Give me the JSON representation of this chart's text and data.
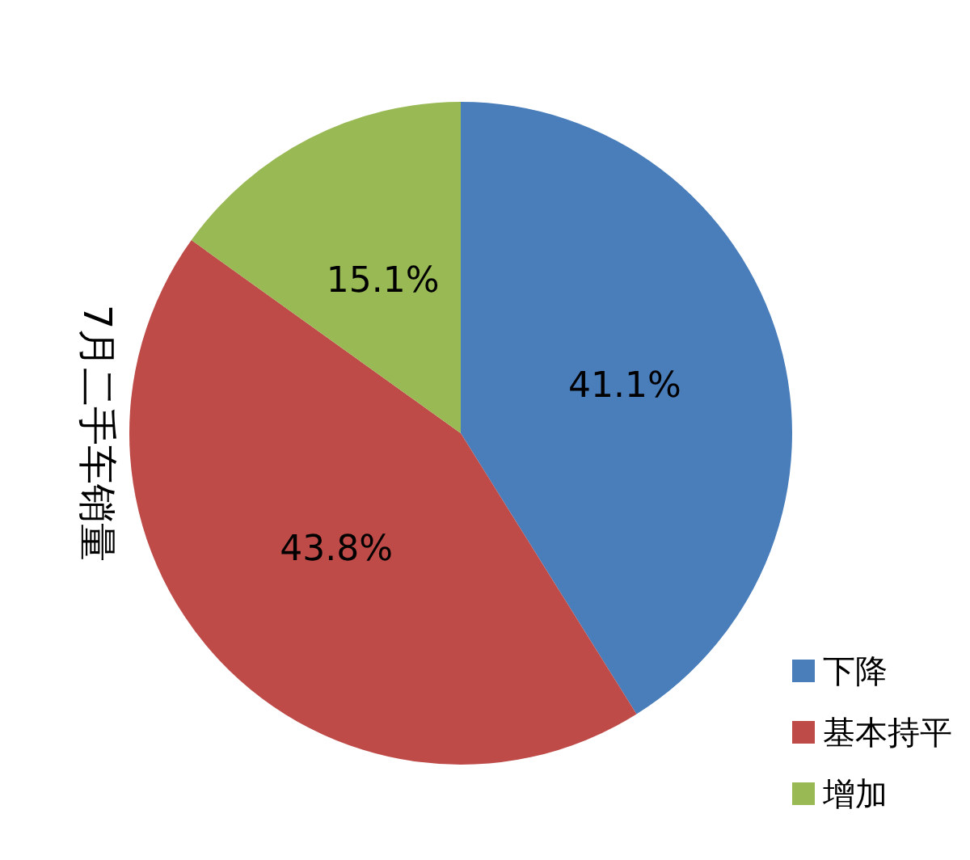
{
  "chart_data": {
    "type": "pie",
    "title": "7月二手车销量",
    "categories": [
      "下降",
      "基本持平",
      "增加"
    ],
    "values": [
      41.1,
      43.8,
      15.1
    ],
    "value_labels": [
      "41.1%",
      "43.8%",
      "15.1%"
    ],
    "colors": [
      "#4a7ebb",
      "#be4b48",
      "#98b954"
    ],
    "legend": "bottom right"
  }
}
